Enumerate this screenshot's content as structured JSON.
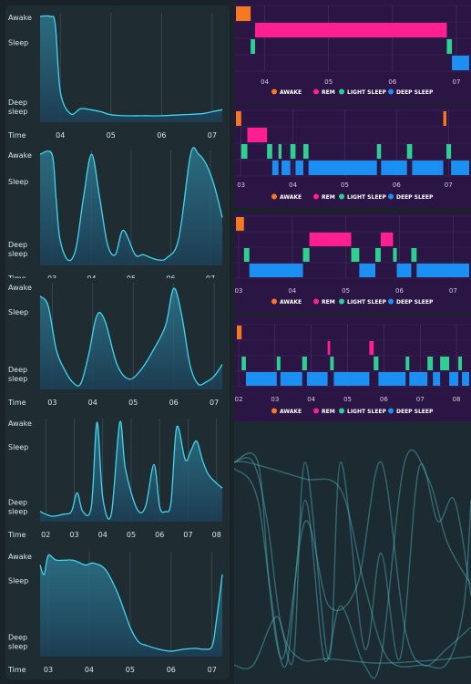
{
  "chart_data": [
    {
      "type": "area",
      "y_categories": [
        "Awake",
        "Sleep",
        "Deep sleep"
      ],
      "xlabel": "Time",
      "x_ticks": [
        "04",
        "05",
        "06",
        "07"
      ],
      "x": [
        3.6,
        3.8,
        3.9,
        4.0,
        4.2,
        4.4,
        4.6,
        4.8,
        5.0,
        5.3,
        5.6,
        6.0,
        6.4,
        6.8,
        7.0,
        7.2
      ],
      "values": [
        1.0,
        1.0,
        0.92,
        0.25,
        0.03,
        0.08,
        0.07,
        0.05,
        0.02,
        0.01,
        0.01,
        0.01,
        0.02,
        0.03,
        0.05,
        0.07
      ],
      "color": "#3fd6ef",
      "grid": true
    },
    {
      "type": "area",
      "y_categories": [
        "Awake",
        "Sleep",
        "Deep sleep"
      ],
      "xlabel": "Time",
      "x_ticks": [
        "03",
        "04",
        "05",
        "06",
        "07"
      ],
      "x": [
        2.7,
        3.0,
        3.1,
        3.2,
        3.4,
        3.6,
        3.8,
        4.0,
        4.2,
        4.4,
        4.6,
        4.8,
        5.1,
        5.3,
        5.5,
        5.7,
        5.9,
        6.2,
        6.5,
        6.7,
        6.9,
        7.1,
        7.3
      ],
      "values": [
        1.0,
        1.0,
        0.6,
        0.2,
        0.0,
        0.1,
        0.6,
        1.0,
        0.6,
        0.15,
        0.05,
        0.28,
        0.05,
        0.05,
        0.02,
        0.0,
        0.02,
        0.2,
        1.0,
        1.0,
        0.9,
        0.7,
        0.4
      ],
      "color": "#3fd6ef",
      "grid": true
    },
    {
      "type": "area",
      "y_categories": [
        "Awake",
        "Sleep",
        "Deep sleep"
      ],
      "xlabel": "Time",
      "x_ticks": [
        "03",
        "04",
        "05",
        "06",
        "07"
      ],
      "x": [
        2.7,
        2.9,
        3.1,
        3.3,
        3.5,
        3.7,
        3.9,
        4.1,
        4.3,
        4.6,
        4.9,
        5.2,
        5.5,
        5.8,
        6.0,
        6.2,
        6.4,
        6.6,
        6.8,
        7.0,
        7.2
      ],
      "values": [
        0.9,
        0.8,
        0.35,
        0.15,
        0.02,
        0.0,
        0.3,
        0.7,
        0.65,
        0.2,
        0.05,
        0.15,
        0.35,
        0.6,
        0.98,
        0.7,
        0.2,
        0.0,
        0.02,
        0.08,
        0.2
      ],
      "color": "#3fd6ef",
      "grid": true
    },
    {
      "type": "area",
      "y_categories": [
        "Awake",
        "Sleep",
        "Deep sleep"
      ],
      "xlabel": "Time",
      "x_ticks": [
        "02",
        "03",
        "04",
        "05",
        "06",
        "07",
        "08"
      ],
      "x": [
        1.8,
        2.2,
        2.6,
        2.9,
        3.1,
        3.3,
        3.6,
        3.8,
        4.0,
        4.3,
        4.6,
        4.8,
        5.2,
        5.5,
        5.8,
        6.0,
        6.2,
        6.4,
        6.6,
        6.9,
        7.1,
        7.3,
        7.5,
        7.7,
        8.0,
        8.2
      ],
      "values": [
        0.05,
        0.0,
        0.02,
        0.05,
        0.25,
        0.05,
        0.1,
        1.0,
        0.2,
        0.02,
        1.0,
        0.5,
        0.08,
        0.1,
        0.55,
        0.1,
        0.05,
        0.15,
        0.95,
        0.6,
        0.7,
        0.8,
        0.6,
        0.45,
        0.35,
        0.3
      ],
      "color": "#3fd6ef",
      "grid": true
    },
    {
      "type": "area",
      "y_categories": [
        "Awake",
        "Sleep",
        "Deep sleep"
      ],
      "xlabel": "Time",
      "x_ticks": [
        "03",
        "04",
        "05",
        "06",
        "07"
      ],
      "x": [
        2.8,
        2.9,
        3.0,
        3.2,
        3.6,
        3.9,
        4.1,
        4.4,
        4.7,
        5.0,
        5.2,
        5.4,
        5.7,
        6.0,
        6.3,
        6.6,
        6.8,
        7.0,
        7.1,
        7.25
      ],
      "values": [
        0.9,
        0.8,
        1.0,
        0.95,
        0.95,
        0.9,
        0.92,
        0.85,
        0.6,
        0.25,
        0.1,
        0.06,
        0.02,
        0.0,
        0.02,
        0.03,
        0.02,
        0.05,
        0.3,
        0.8
      ],
      "color": "#3fd6ef",
      "grid": true
    },
    {
      "type": "bar",
      "chart_kind": "hypnogram",
      "stages": [
        "AWAKE",
        "REM",
        "LIGHT SLEEP",
        "DEEP SLEEP"
      ],
      "stage_colors": [
        "#f5791f",
        "#ff1f93",
        "#2ed092",
        "#1b8ff2"
      ],
      "x_ticks": [
        "04",
        "05",
        "06",
        "07"
      ],
      "x_start": 3.55,
      "x_end": 7.2,
      "segments": [
        {
          "stage": "AWAKE",
          "start": 3.55,
          "end": 3.78
        },
        {
          "stage": "LIGHT SLEEP",
          "start": 3.78,
          "end": 3.85
        },
        {
          "stage": "REM",
          "start": 3.85,
          "end": 6.85
        },
        {
          "stage": "LIGHT SLEEP",
          "start": 6.85,
          "end": 6.93
        },
        {
          "stage": "DEEP SLEEP",
          "start": 6.93,
          "end": 7.2
        }
      ],
      "legend": [
        "AWAKE",
        "REM",
        "LIGHT SLEEP",
        "DEEP SLEEP"
      ]
    },
    {
      "type": "bar",
      "chart_kind": "hypnogram",
      "stages": [
        "AWAKE",
        "REM",
        "LIGHT SLEEP",
        "DEEP SLEEP"
      ],
      "stage_colors": [
        "#f5791f",
        "#ff1f93",
        "#2ed092",
        "#1b8ff2"
      ],
      "x_ticks": [
        "03",
        "04",
        "05",
        "06",
        "07"
      ],
      "x_start": 2.9,
      "x_end": 7.4,
      "segments": [
        {
          "stage": "AWAKE",
          "start": 2.9,
          "end": 3.0
        },
        {
          "stage": "LIGHT SLEEP",
          "start": 3.0,
          "end": 3.12
        },
        {
          "stage": "REM",
          "start": 3.12,
          "end": 3.5
        },
        {
          "stage": "LIGHT SLEEP",
          "start": 3.5,
          "end": 3.6
        },
        {
          "stage": "DEEP SLEEP",
          "start": 3.6,
          "end": 3.72
        },
        {
          "stage": "LIGHT SLEEP",
          "start": 3.72,
          "end": 3.78
        },
        {
          "stage": "DEEP SLEEP",
          "start": 3.78,
          "end": 3.95
        },
        {
          "stage": "LIGHT SLEEP",
          "start": 3.95,
          "end": 4.05
        },
        {
          "stage": "DEEP SLEEP",
          "start": 4.05,
          "end": 4.2
        },
        {
          "stage": "LIGHT SLEEP",
          "start": 4.2,
          "end": 4.3
        },
        {
          "stage": "DEEP SLEEP",
          "start": 4.3,
          "end": 5.62
        },
        {
          "stage": "LIGHT SLEEP",
          "start": 5.62,
          "end": 5.7
        },
        {
          "stage": "DEEP SLEEP",
          "start": 5.7,
          "end": 6.2
        },
        {
          "stage": "LIGHT SLEEP",
          "start": 6.2,
          "end": 6.3
        },
        {
          "stage": "DEEP SLEEP",
          "start": 6.3,
          "end": 6.9
        },
        {
          "stage": "AWAKE",
          "start": 6.9,
          "end": 6.96
        },
        {
          "stage": "LIGHT SLEEP",
          "start": 6.96,
          "end": 7.05
        },
        {
          "stage": "DEEP SLEEP",
          "start": 7.05,
          "end": 7.4
        }
      ],
      "legend": [
        "AWAKE",
        "REM",
        "LIGHT SLEEP",
        "DEEP SLEEP"
      ]
    },
    {
      "type": "bar",
      "chart_kind": "hypnogram",
      "stages": [
        "AWAKE",
        "REM",
        "LIGHT SLEEP",
        "DEEP SLEEP"
      ],
      "stage_colors": [
        "#f5791f",
        "#ff1f93",
        "#2ed092",
        "#1b8ff2"
      ],
      "x_ticks": [
        "03",
        "04",
        "05",
        "06",
        "07"
      ],
      "x_start": 2.95,
      "x_end": 7.3,
      "segments": [
        {
          "stage": "AWAKE",
          "start": 2.95,
          "end": 3.1
        },
        {
          "stage": "LIGHT SLEEP",
          "start": 3.1,
          "end": 3.2
        },
        {
          "stage": "DEEP SLEEP",
          "start": 3.2,
          "end": 4.2
        },
        {
          "stage": "LIGHT SLEEP",
          "start": 4.2,
          "end": 4.32
        },
        {
          "stage": "REM",
          "start": 4.32,
          "end": 5.1
        },
        {
          "stage": "LIGHT SLEEP",
          "start": 5.1,
          "end": 5.25
        },
        {
          "stage": "DEEP SLEEP",
          "start": 5.25,
          "end": 5.55
        },
        {
          "stage": "LIGHT SLEEP",
          "start": 5.55,
          "end": 5.65
        },
        {
          "stage": "REM",
          "start": 5.65,
          "end": 5.88
        },
        {
          "stage": "LIGHT SLEEP",
          "start": 5.88,
          "end": 5.95
        },
        {
          "stage": "DEEP SLEEP",
          "start": 5.95,
          "end": 6.22
        },
        {
          "stage": "LIGHT SLEEP",
          "start": 6.22,
          "end": 6.32
        },
        {
          "stage": "DEEP SLEEP",
          "start": 6.32,
          "end": 7.3
        }
      ],
      "legend": [
        "AWAKE",
        "REM",
        "LIGHT SLEEP",
        "DEEP SLEEP"
      ]
    },
    {
      "type": "bar",
      "chart_kind": "hypnogram",
      "stages": [
        "AWAKE",
        "REM",
        "LIGHT SLEEP",
        "DEEP SLEEP"
      ],
      "stage_colors": [
        "#f5791f",
        "#ff1f93",
        "#2ed092",
        "#1b8ff2"
      ],
      "x_ticks": [
        "02",
        "03",
        "04",
        "05",
        "06",
        "07",
        "08"
      ],
      "x_start": 1.95,
      "x_end": 8.35,
      "segments": [
        {
          "stage": "AWAKE",
          "start": 1.95,
          "end": 2.08
        },
        {
          "stage": "LIGHT SLEEP",
          "start": 2.08,
          "end": 2.2
        },
        {
          "stage": "DEEP SLEEP",
          "start": 2.2,
          "end": 3.05
        },
        {
          "stage": "LIGHT SLEEP",
          "start": 3.05,
          "end": 3.15
        },
        {
          "stage": "DEEP SLEEP",
          "start": 3.15,
          "end": 3.75
        },
        {
          "stage": "LIGHT SLEEP",
          "start": 3.75,
          "end": 3.88
        },
        {
          "stage": "DEEP SLEEP",
          "start": 3.88,
          "end": 4.45
        },
        {
          "stage": "REM",
          "start": 4.45,
          "end": 4.52
        },
        {
          "stage": "LIGHT SLEEP",
          "start": 4.52,
          "end": 4.62
        },
        {
          "stage": "DEEP SLEEP",
          "start": 4.62,
          "end": 5.6
        },
        {
          "stage": "REM",
          "start": 5.6,
          "end": 5.72
        },
        {
          "stage": "LIGHT SLEEP",
          "start": 5.72,
          "end": 5.85
        },
        {
          "stage": "DEEP SLEEP",
          "start": 5.85,
          "end": 6.6
        },
        {
          "stage": "LIGHT SLEEP",
          "start": 6.6,
          "end": 6.7
        },
        {
          "stage": "DEEP SLEEP",
          "start": 6.7,
          "end": 7.2
        },
        {
          "stage": "LIGHT SLEEP",
          "start": 7.2,
          "end": 7.35
        },
        {
          "stage": "DEEP SLEEP",
          "start": 7.35,
          "end": 7.55
        },
        {
          "stage": "LIGHT SLEEP",
          "start": 7.55,
          "end": 7.8
        },
        {
          "stage": "DEEP SLEEP",
          "start": 7.8,
          "end": 8.05
        },
        {
          "stage": "LIGHT SLEEP",
          "start": 8.05,
          "end": 8.15
        },
        {
          "stage": "DEEP SLEEP",
          "start": 8.15,
          "end": 8.35
        }
      ],
      "legend": [
        "AWAKE",
        "REM",
        "LIGHT SLEEP",
        "DEEP SLEEP"
      ]
    },
    {
      "type": "line",
      "chart_kind": "overlay",
      "color": "#4fb8c4",
      "series": [
        {
          "x": [
            0,
            0.08,
            0.14,
            0.2,
            0.28,
            0.4,
            0.6,
            0.8,
            1.0
          ],
          "values": [
            0.98,
            0.98,
            0.7,
            0.2,
            0.05,
            0.05,
            0.03,
            0.04,
            0.06
          ]
        },
        {
          "x": [
            0,
            0.1,
            0.15,
            0.22,
            0.3,
            0.38,
            0.45,
            0.55,
            0.62,
            0.72,
            0.82,
            0.9,
            1.0
          ],
          "values": [
            0.98,
            0.98,
            0.4,
            0.02,
            0.8,
            0.05,
            0.3,
            0.02,
            0.05,
            0.98,
            0.9,
            0.6,
            0.4
          ]
        },
        {
          "x": [
            0,
            0.1,
            0.2,
            0.3,
            0.4,
            0.52,
            0.62,
            0.72,
            0.8,
            0.9,
            1.0
          ],
          "values": [
            0.95,
            0.8,
            0.05,
            0.7,
            0.3,
            0.4,
            0.98,
            0.2,
            0.02,
            0.1,
            0.2
          ]
        },
        {
          "x": [
            0,
            0.08,
            0.18,
            0.25,
            0.3,
            0.4,
            0.45,
            0.55,
            0.62,
            0.7,
            0.78,
            0.86,
            0.93,
            1.0
          ],
          "values": [
            0.02,
            0.02,
            0.25,
            0.05,
            0.98,
            0.05,
            0.98,
            0.1,
            0.55,
            0.05,
            0.95,
            0.7,
            0.8,
            0.35
          ]
        },
        {
          "x": [
            0,
            0.05,
            0.15,
            0.3,
            0.45,
            0.55,
            0.65,
            0.8,
            0.9,
            0.97,
            1.0
          ],
          "values": [
            0.98,
            0.98,
            0.95,
            0.9,
            0.85,
            0.4,
            0.05,
            0.02,
            0.03,
            0.3,
            0.8
          ]
        }
      ]
    }
  ]
}
